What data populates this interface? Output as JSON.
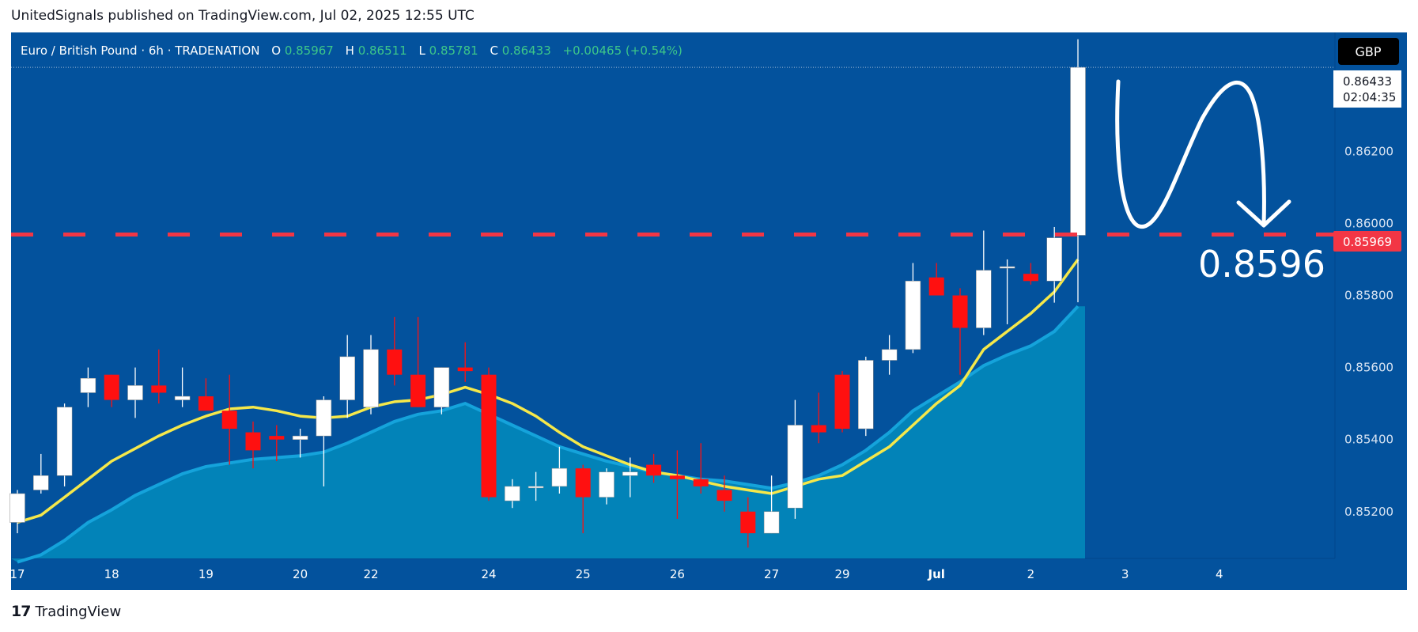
{
  "header": {
    "publisher_line": "UnitedSignals published on TradingView.com, Jul 02, 2025 12:55 UTC"
  },
  "legend": {
    "symbol": "Euro / British Pound · 6h · TRADENATION",
    "o_label": "O",
    "o_value": "0.85967",
    "h_label": "H",
    "h_value": "0.86511",
    "l_label": "L",
    "l_value": "0.85781",
    "c_label": "C",
    "c_value": "0.86433",
    "change": "+0.00465 (+0.54%)"
  },
  "currency_button": "GBP",
  "price_tag": {
    "price": "0.86433",
    "countdown": "02:04:35"
  },
  "level_tag": "0.85969",
  "annotation": "0.8596",
  "footer": {
    "brand": "TradingView",
    "logo_mark": "17"
  },
  "colors": {
    "chart_bg": "#03529d",
    "area_fill": "#0283b8",
    "area_line": "#15a3db",
    "ma_line": "#f5e84a",
    "up_candle": "#ffffff",
    "down_candle": "#ff1010",
    "level_line": "#f23645",
    "legend_green": "#3dc789"
  },
  "chart_data": {
    "type": "candlestick",
    "symbol": "EURGBP",
    "timeframe": "6h",
    "ylim": [
      0.8507,
      0.8653
    ],
    "y_ticks": [
      "0.86200",
      "0.86000",
      "0.85800",
      "0.85600",
      "0.85400",
      "0.85200"
    ],
    "x_ticks": [
      "17",
      "18",
      "19",
      "20",
      "22",
      "24",
      "25",
      "26",
      "27",
      "29",
      "Jul",
      "2",
      "3",
      "4"
    ],
    "level": 0.85969,
    "last_price": 0.86433,
    "candles": [
      {
        "o": 0.8517,
        "h": 0.8526,
        "l": 0.8514,
        "c": 0.8525
      },
      {
        "o": 0.8526,
        "h": 0.8536,
        "l": 0.8525,
        "c": 0.853
      },
      {
        "o": 0.853,
        "h": 0.855,
        "l": 0.8527,
        "c": 0.8549
      },
      {
        "o": 0.8553,
        "h": 0.856,
        "l": 0.8549,
        "c": 0.8557
      },
      {
        "o": 0.8558,
        "h": 0.8558,
        "l": 0.8549,
        "c": 0.8551
      },
      {
        "o": 0.8551,
        "h": 0.856,
        "l": 0.8546,
        "c": 0.8555
      },
      {
        "o": 0.8555,
        "h": 0.8565,
        "l": 0.855,
        "c": 0.8553
      },
      {
        "o": 0.8551,
        "h": 0.856,
        "l": 0.8549,
        "c": 0.8552
      },
      {
        "o": 0.8552,
        "h": 0.8557,
        "l": 0.8549,
        "c": 0.8548
      },
      {
        "o": 0.8548,
        "h": 0.8558,
        "l": 0.8533,
        "c": 0.8543
      },
      {
        "o": 0.8542,
        "h": 0.8545,
        "l": 0.8532,
        "c": 0.8537
      },
      {
        "o": 0.8541,
        "h": 0.8544,
        "l": 0.8534,
        "c": 0.854
      },
      {
        "o": 0.854,
        "h": 0.8543,
        "l": 0.8535,
        "c": 0.8541
      },
      {
        "o": 0.8541,
        "h": 0.8552,
        "l": 0.8527,
        "c": 0.8551
      },
      {
        "o": 0.8551,
        "h": 0.8569,
        "l": 0.8546,
        "c": 0.8563
      },
      {
        "o": 0.8549,
        "h": 0.8569,
        "l": 0.8547,
        "c": 0.8565
      },
      {
        "o": 0.8565,
        "h": 0.8574,
        "l": 0.8555,
        "c": 0.8558
      },
      {
        "o": 0.8558,
        "h": 0.8574,
        "l": 0.8549,
        "c": 0.8549
      },
      {
        "o": 0.8549,
        "h": 0.856,
        "l": 0.8547,
        "c": 0.856
      },
      {
        "o": 0.856,
        "h": 0.8567,
        "l": 0.8556,
        "c": 0.8559
      },
      {
        "o": 0.8558,
        "h": 0.856,
        "l": 0.8523,
        "c": 0.8524
      },
      {
        "o": 0.8523,
        "h": 0.8529,
        "l": 0.8521,
        "c": 0.8527
      },
      {
        "o": 0.8527,
        "h": 0.8531,
        "l": 0.8523,
        "c": 0.8527
      },
      {
        "o": 0.8527,
        "h": 0.8538,
        "l": 0.8525,
        "c": 0.8532
      },
      {
        "o": 0.8532,
        "h": 0.8533,
        "l": 0.8514,
        "c": 0.8524
      },
      {
        "o": 0.8524,
        "h": 0.8532,
        "l": 0.8522,
        "c": 0.8531
      },
      {
        "o": 0.853,
        "h": 0.8535,
        "l": 0.8524,
        "c": 0.8531
      },
      {
        "o": 0.8533,
        "h": 0.8536,
        "l": 0.8528,
        "c": 0.853
      },
      {
        "o": 0.853,
        "h": 0.8537,
        "l": 0.8518,
        "c": 0.8529
      },
      {
        "o": 0.8529,
        "h": 0.8539,
        "l": 0.8525,
        "c": 0.8527
      },
      {
        "o": 0.8526,
        "h": 0.853,
        "l": 0.852,
        "c": 0.8523
      },
      {
        "o": 0.852,
        "h": 0.8524,
        "l": 0.851,
        "c": 0.8514
      },
      {
        "o": 0.8514,
        "h": 0.853,
        "l": 0.8514,
        "c": 0.852
      },
      {
        "o": 0.8521,
        "h": 0.8551,
        "l": 0.8518,
        "c": 0.8544
      },
      {
        "o": 0.8544,
        "h": 0.8553,
        "l": 0.8539,
        "c": 0.8542
      },
      {
        "o": 0.8558,
        "h": 0.8559,
        "l": 0.8542,
        "c": 0.8543
      },
      {
        "o": 0.8543,
        "h": 0.8563,
        "l": 0.8541,
        "c": 0.8562
      },
      {
        "o": 0.8562,
        "h": 0.8569,
        "l": 0.8558,
        "c": 0.8565
      },
      {
        "o": 0.8565,
        "h": 0.8589,
        "l": 0.8564,
        "c": 0.8584
      },
      {
        "o": 0.8585,
        "h": 0.8589,
        "l": 0.858,
        "c": 0.858
      },
      {
        "o": 0.858,
        "h": 0.8582,
        "l": 0.8558,
        "c": 0.8571
      },
      {
        "o": 0.8571,
        "h": 0.8598,
        "l": 0.8569,
        "c": 0.8587
      },
      {
        "o": 0.8588,
        "h": 0.859,
        "l": 0.8572,
        "c": 0.8588
      },
      {
        "o": 0.8586,
        "h": 0.8589,
        "l": 0.8583,
        "c": 0.8584
      },
      {
        "o": 0.8584,
        "h": 0.8599,
        "l": 0.8578,
        "c": 0.8596
      },
      {
        "o": 0.85967,
        "h": 0.86511,
        "l": 0.85781,
        "c": 0.86433
      }
    ],
    "ma_line": [
      0.8517,
      0.8519,
      0.8524,
      0.8529,
      0.8534,
      0.85375,
      0.8541,
      0.8544,
      0.85465,
      0.85485,
      0.8549,
      0.8548,
      0.85465,
      0.8546,
      0.85465,
      0.8549,
      0.85505,
      0.8551,
      0.85525,
      0.85545,
      0.85525,
      0.855,
      0.85465,
      0.8542,
      0.8538,
      0.85355,
      0.8533,
      0.8531,
      0.853,
      0.85285,
      0.8527,
      0.8526,
      0.8525,
      0.8527,
      0.8529,
      0.853,
      0.8534,
      0.8538,
      0.8544,
      0.855,
      0.8555,
      0.8565,
      0.857,
      0.8575,
      0.8581,
      0.859
    ],
    "area_top": [
      0.8506,
      0.8508,
      0.8512,
      0.8517,
      0.85205,
      0.85245,
      0.85275,
      0.85305,
      0.85325,
      0.85335,
      0.85345,
      0.8535,
      0.85355,
      0.85365,
      0.8539,
      0.8542,
      0.8545,
      0.8547,
      0.8548,
      0.855,
      0.8547,
      0.8544,
      0.8541,
      0.8538,
      0.8536,
      0.8534,
      0.85325,
      0.8531,
      0.853,
      0.8529,
      0.85285,
      0.85275,
      0.85265,
      0.8528,
      0.853,
      0.8533,
      0.8537,
      0.8542,
      0.8548,
      0.8552,
      0.8556,
      0.85605,
      0.85635,
      0.8566,
      0.857,
      0.8577
    ]
  }
}
